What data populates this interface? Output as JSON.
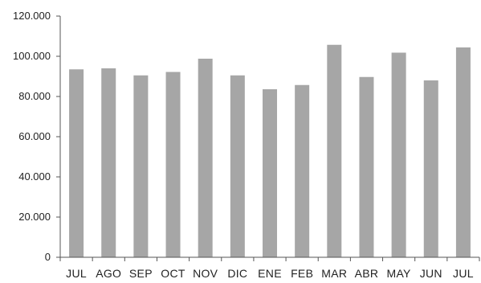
{
  "chart_data": {
    "type": "bar",
    "title": "",
    "xlabel": "",
    "ylabel": "",
    "ylim": [
      0,
      120000
    ],
    "yticks": [
      0,
      20000,
      40000,
      60000,
      80000,
      100000,
      120000
    ],
    "ytick_labels": [
      "0",
      "20.000",
      "40.000",
      "60.000",
      "80.000",
      "100.000",
      "120.000"
    ],
    "categories": [
      "JUL",
      "AGO",
      "SEP",
      "OCT",
      "NOV",
      "DIC",
      "ENE",
      "FEB",
      "MAR",
      "ABR",
      "MAY",
      "JUN",
      "JUL"
    ],
    "values": [
      93500,
      94000,
      90500,
      92200,
      98800,
      90500,
      83600,
      85700,
      105700,
      89700,
      101800,
      88000,
      104400
    ],
    "grid": false,
    "legend": "none",
    "colors": {
      "bar": "#a6a6a6",
      "axis": "#555555",
      "text": "#222222"
    }
  }
}
